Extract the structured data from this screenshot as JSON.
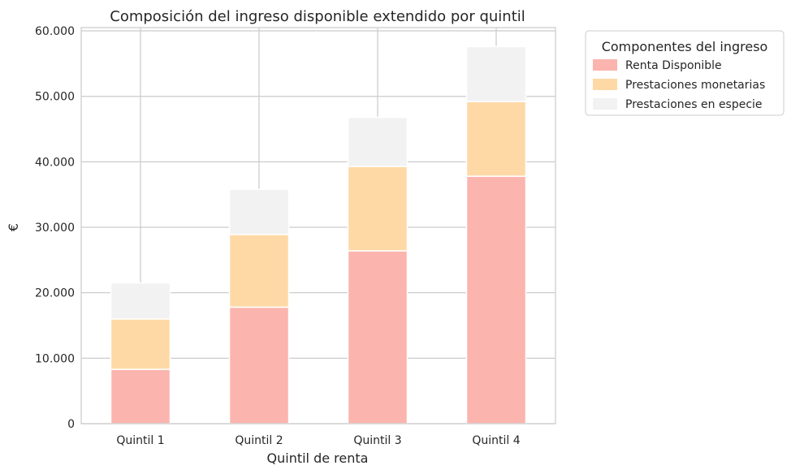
{
  "chart_data": {
    "type": "bar",
    "stacked": true,
    "title": "Composición del ingreso disponible extendido por quintil",
    "xlabel": "Quintil de renta",
    "ylabel": "€",
    "categories": [
      "Quintil 1",
      "Quintil 2",
      "Quintil 3",
      "Quintil 4"
    ],
    "ylim": [
      0,
      60500
    ],
    "yticks": [
      0,
      10000,
      20000,
      30000,
      40000,
      50000,
      60000
    ],
    "ytick_labels": [
      "0",
      "10.000",
      "20.000",
      "30.000",
      "40.000",
      "50.000",
      "60.000"
    ],
    "grid": true,
    "legend": {
      "title": "Componentes del ingreso",
      "placement": "outside-top-right"
    },
    "series": [
      {
        "name": "Renta Disponible",
        "color": "#fbb4ae",
        "values": [
          8300,
          17800,
          26400,
          37800
        ]
      },
      {
        "name": "Prestaciones monetarias",
        "color": "#fed9a6",
        "values": [
          7700,
          11100,
          12900,
          11400
        ]
      },
      {
        "name": "Prestaciones en especie",
        "color": "#f2f2f2",
        "values": [
          5500,
          6900,
          7500,
          8400
        ]
      }
    ]
  }
}
